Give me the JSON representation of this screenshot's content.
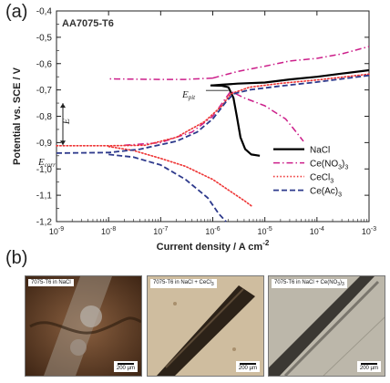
{
  "panels": {
    "a": "(a)",
    "b": "(b)"
  },
  "chart_data": {
    "type": "line",
    "title": "AA7075-T6",
    "xlabel_prefix": "Current density / A cm",
    "xlabel_exp": "-2",
    "ylabel": "Potential vs. SCE / V",
    "x_scale": "log",
    "xlim": [
      1e-09,
      0.001
    ],
    "ylim": [
      -1.2,
      -0.4
    ],
    "x_ticks": [
      {
        "base": "10",
        "exp": "-9"
      },
      {
        "base": "10",
        "exp": "-8"
      },
      {
        "base": "10",
        "exp": "-7"
      },
      {
        "base": "10",
        "exp": "-6"
      },
      {
        "base": "10",
        "exp": "-5"
      },
      {
        "base": "10",
        "exp": "-4"
      },
      {
        "base": "10",
        "exp": "-3"
      }
    ],
    "y_ticks": [
      "-0,4",
      "-0,5",
      "-0,6",
      "-0,7",
      "-0,8",
      "-0,9",
      "-1,0",
      "-1,1",
      "-1,2"
    ],
    "y_tick_values": [
      -0.4,
      -0.5,
      -0.6,
      -0.7,
      -0.8,
      -0.9,
      -1.0,
      -1.1,
      -1.2
    ],
    "annotations": {
      "epit": "E",
      "epit_sub": "pit",
      "ecorr": "E",
      "ecorr_sub": "corr",
      "delta_e": "E"
    },
    "legend_position": "bottom-right",
    "series": [
      {
        "name": "NaCl",
        "name_sub": "",
        "color": "#000000",
        "style": "solid",
        "points": [
          [
            9.5e-07,
            -0.683
          ],
          [
            1.5e-06,
            -0.68
          ],
          [
            3e-06,
            -0.676
          ],
          [
            1e-05,
            -0.672
          ],
          [
            3e-05,
            -0.66
          ],
          [
            0.0001,
            -0.65
          ],
          [
            0.0003,
            -0.638
          ],
          [
            0.001,
            -0.625
          ],
          [
            null,
            null
          ],
          [
            9e-07,
            -0.683
          ],
          [
            1.5e-06,
            -0.684
          ],
          [
            2e-06,
            -0.69
          ],
          [
            2.5e-06,
            -0.73
          ],
          [
            2.9e-06,
            -0.8
          ],
          [
            3.4e-06,
            -0.88
          ],
          [
            4.2e-06,
            -0.925
          ],
          [
            5.5e-06,
            -0.945
          ],
          [
            8e-06,
            -0.95
          ]
        ]
      },
      {
        "name": "Ce(NO",
        "name_sub": "3",
        "name_tail": ")",
        "name_tail_sub": "3",
        "color": "#cc1f8a",
        "style": "dashdot",
        "points": [
          [
            1e-06,
            -0.655
          ],
          [
            3e-07,
            -0.66
          ],
          [
            1e-07,
            -0.66
          ],
          [
            1e-08,
            -0.658
          ],
          [
            null,
            null
          ],
          [
            1e-06,
            -0.655
          ],
          [
            3e-06,
            -0.63
          ],
          [
            1e-05,
            -0.61
          ],
          [
            3e-05,
            -0.59
          ],
          [
            0.0001,
            -0.58
          ],
          [
            0.0003,
            -0.563
          ],
          [
            0.001,
            -0.535
          ],
          [
            null,
            null
          ],
          [
            2e-08,
            -0.91
          ],
          [
            1e-07,
            -0.9
          ],
          [
            4e-07,
            -0.86
          ],
          [
            1e-06,
            -0.8
          ],
          [
            2.2e-06,
            -0.705
          ],
          [
            4e-06,
            -0.73
          ],
          [
            1e-05,
            -0.76
          ],
          [
            2.5e-05,
            -0.81
          ],
          [
            4e-05,
            -0.86
          ],
          [
            5.5e-05,
            -0.895
          ]
        ]
      },
      {
        "name": "CeCl",
        "name_sub": "3",
        "color": "#ee3333",
        "style": "dotted",
        "points": [
          [
            1e-09,
            -0.912
          ],
          [
            1e-08,
            -0.912
          ],
          [
            5e-08,
            -0.91
          ],
          [
            2e-07,
            -0.88
          ],
          [
            7e-07,
            -0.82
          ],
          [
            1.5e-06,
            -0.76
          ],
          [
            2.2e-06,
            -0.715
          ],
          [
            5e-06,
            -0.69
          ],
          [
            2e-05,
            -0.675
          ],
          [
            0.0001,
            -0.662
          ],
          [
            0.001,
            -0.64
          ],
          [
            null,
            null
          ],
          [
            1e-08,
            -0.915
          ],
          [
            3e-08,
            -0.93
          ],
          [
            1e-07,
            -0.96
          ],
          [
            3e-07,
            -0.99
          ],
          [
            1e-06,
            -1.04
          ],
          [
            2e-06,
            -1.08
          ],
          [
            4e-06,
            -1.12
          ],
          [
            5.5e-06,
            -1.14
          ]
        ]
      },
      {
        "name": "Ce(Ac)",
        "name_sub": "3",
        "color": "#2e3a8c",
        "style": "dashed",
        "points": [
          [
            1e-09,
            -0.94
          ],
          [
            1e-08,
            -0.938
          ],
          [
            4e-08,
            -0.925
          ],
          [
            2e-07,
            -0.895
          ],
          [
            5e-07,
            -0.86
          ],
          [
            1e-06,
            -0.81
          ],
          [
            1.8e-06,
            -0.745
          ],
          [
            2.5e-06,
            -0.715
          ],
          [
            5e-06,
            -0.7
          ],
          [
            2e-05,
            -0.685
          ],
          [
            0.0001,
            -0.67
          ],
          [
            0.001,
            -0.645
          ],
          [
            null,
            null
          ],
          [
            1e-08,
            -0.945
          ],
          [
            3e-08,
            -0.955
          ],
          [
            1e-07,
            -0.985
          ],
          [
            3e-07,
            -1.04
          ],
          [
            8e-07,
            -1.11
          ],
          [
            1.3e-06,
            -1.17
          ],
          [
            1.8e-06,
            -1.2
          ]
        ]
      }
    ]
  },
  "micrographs": [
    {
      "caption": "7075-T6 in NaCl",
      "scale": "200 µm",
      "bg": "#7a5030"
    },
    {
      "caption": "7075-T6 in NaCl + CeCl",
      "caption_sub": "3",
      "scale": "200 µm",
      "bg": "#cdbb9c"
    },
    {
      "caption": "7075-T6 in NaCl + Ce(NO",
      "caption_sub": "3",
      "caption_tail": ")",
      "caption_tail_sub": "3",
      "scale": "200 µm",
      "bg": "#b7b3a6"
    }
  ]
}
